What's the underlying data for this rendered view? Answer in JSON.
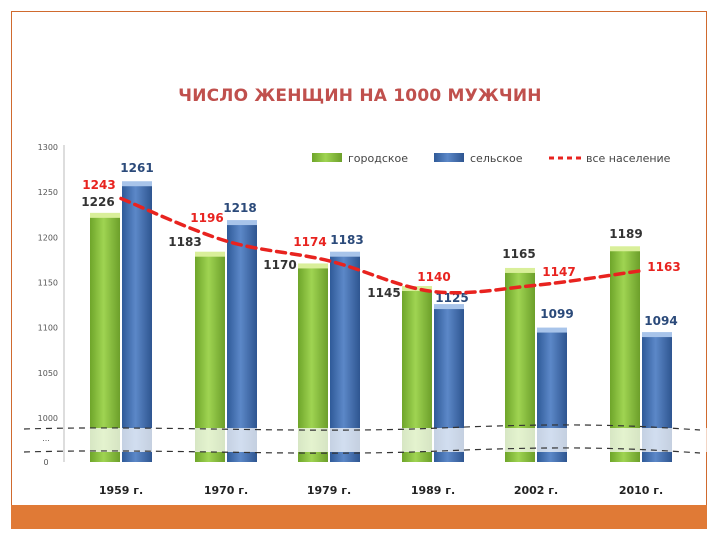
{
  "chart_data": {
    "type": "bar",
    "title": "ЧИСЛО ЖЕНЩИН НА 1000 МУЖЧИН",
    "categories": [
      "1959 г.",
      "1970 г.",
      "1979 г.",
      "1989 г.",
      "2002 г.",
      "2010 г."
    ],
    "series": [
      {
        "name": "городское",
        "kind": "bar",
        "color": "#8dc63f",
        "values": [
          1226,
          1183,
          1170,
          1145,
          1165,
          1189
        ]
      },
      {
        "name": "сельское",
        "kind": "bar",
        "color": "#4a74b5",
        "values": [
          1261,
          1218,
          1183,
          1125,
          1099,
          1094
        ]
      },
      {
        "name": "все население",
        "kind": "line-dashed",
        "color": "#e8231f",
        "values": [
          1243,
          1196,
          1174,
          1140,
          1147,
          1163
        ]
      }
    ],
    "y_ticks": [
      "1300",
      "1250",
      "1200",
      "1150",
      "1100",
      "1050",
      "1000",
      "...",
      "0"
    ],
    "ylim": [
      1000,
      1300
    ],
    "axis_break": true,
    "grid": false,
    "legend_position": "top-right"
  }
}
